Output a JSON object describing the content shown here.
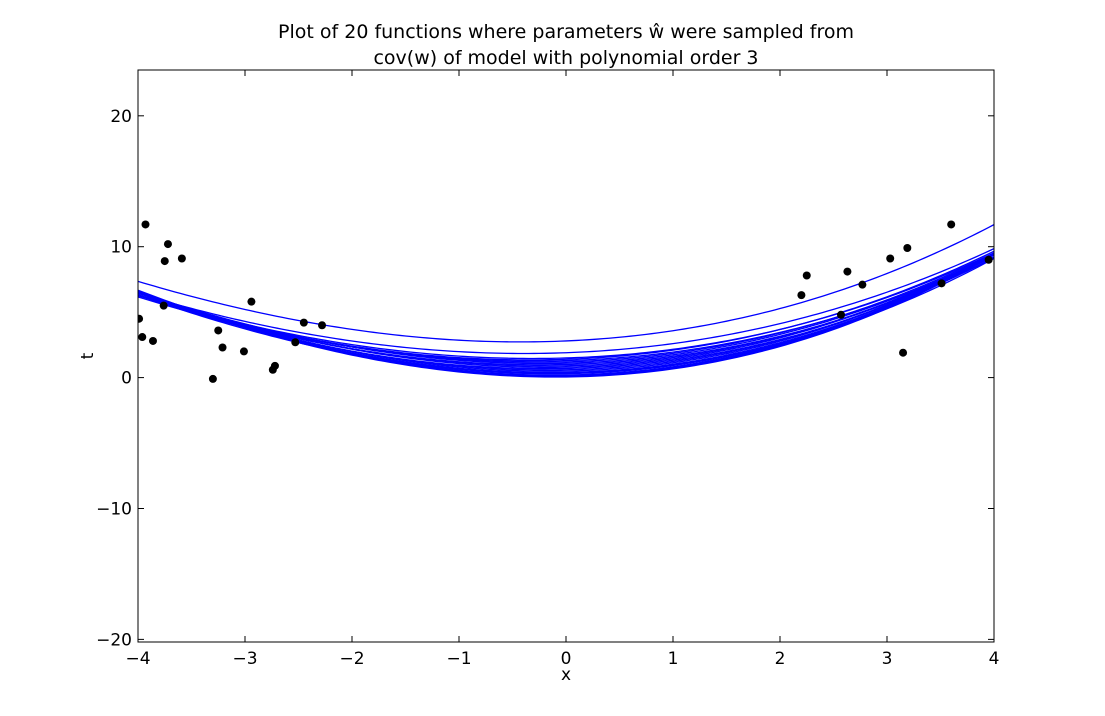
{
  "chart_data": {
    "type": "scatter",
    "title": [
      "Plot of 20 functions where parameters ŵ were sampled from",
      "cov(w) of model with polynomial order 3"
    ],
    "xlabel": "x",
    "ylabel": "t",
    "xlim": [
      -4,
      4
    ],
    "ylim": [
      -20.2,
      23.5
    ],
    "xticks": [
      -4,
      -3,
      -2,
      -1,
      0,
      1,
      2,
      3,
      4
    ],
    "xtick_labels": [
      "−4",
      "−3",
      "−2",
      "−1",
      "0",
      "1",
      "2",
      "3",
      "4"
    ],
    "yticks": [
      -20,
      -10,
      0,
      10,
      20
    ],
    "ytick_labels": [
      "−20",
      "−10",
      "0",
      "10",
      "20"
    ],
    "grid": false,
    "colors": {
      "curve": "#0000ff",
      "points": "#000000",
      "axes": "#000000"
    },
    "points": {
      "x": [
        -3.93,
        -3.96,
        -3.75,
        -3.72,
        -3.76,
        -3.59,
        -3.86,
        -3.99,
        -3.25,
        -3.21,
        -3.3,
        -3.01,
        -2.94,
        -2.74,
        -2.72,
        -2.53,
        -2.45,
        -2.28,
        2.2,
        2.25,
        2.57,
        2.63,
        2.77,
        3.03,
        3.15,
        3.19,
        3.51,
        3.6,
        3.95
      ],
      "y": [
        11.7,
        3.1,
        8.9,
        10.2,
        5.5,
        9.1,
        2.8,
        4.5,
        3.6,
        2.3,
        -0.1,
        2.0,
        5.8,
        0.6,
        0.9,
        2.7,
        4.2,
        4.0,
        6.3,
        7.8,
        4.8,
        8.1,
        7.1,
        9.1,
        1.9,
        9.9,
        7.2,
        11.7,
        9.0
      ]
    },
    "curves": [
      {
        "coef": [
          2.8,
          0.35,
          0.42,
          0.012
        ]
      },
      {
        "coef": [
          1.9,
          0.3,
          0.39,
          0.008
        ]
      },
      {
        "coef": [
          1.5,
          0.25,
          0.4,
          0.01
        ]
      },
      {
        "coef": [
          1.4,
          0.28,
          0.41,
          0.009
        ]
      },
      {
        "coef": [
          1.2,
          0.22,
          0.42,
          0.011
        ]
      },
      {
        "coef": [
          1.1,
          0.2,
          0.43,
          0.01
        ]
      },
      {
        "coef": [
          0.9,
          0.18,
          0.44,
          0.012
        ]
      },
      {
        "coef": [
          0.8,
          0.17,
          0.45,
          0.012
        ]
      },
      {
        "coef": [
          0.6,
          0.16,
          0.46,
          0.013
        ]
      },
      {
        "coef": [
          0.5,
          0.15,
          0.47,
          0.013
        ]
      },
      {
        "coef": [
          0.4,
          0.14,
          0.47,
          0.014
        ]
      },
      {
        "coef": [
          0.3,
          0.13,
          0.48,
          0.014
        ]
      },
      {
        "coef": [
          0.2,
          0.12,
          0.49,
          0.015
        ]
      },
      {
        "coef": [
          0.15,
          0.11,
          0.49,
          0.015
        ]
      },
      {
        "coef": [
          0.1,
          0.1,
          0.5,
          0.016
        ]
      },
      {
        "coef": [
          0.05,
          0.1,
          0.5,
          0.016
        ]
      },
      {
        "coef": [
          1.3,
          0.24,
          0.4,
          0.009
        ]
      },
      {
        "coef": [
          1.0,
          0.2,
          0.42,
          0.01
        ]
      },
      {
        "coef": [
          0.7,
          0.18,
          0.44,
          0.011
        ]
      },
      {
        "coef": [
          0.35,
          0.14,
          0.46,
          0.013
        ]
      }
    ]
  }
}
